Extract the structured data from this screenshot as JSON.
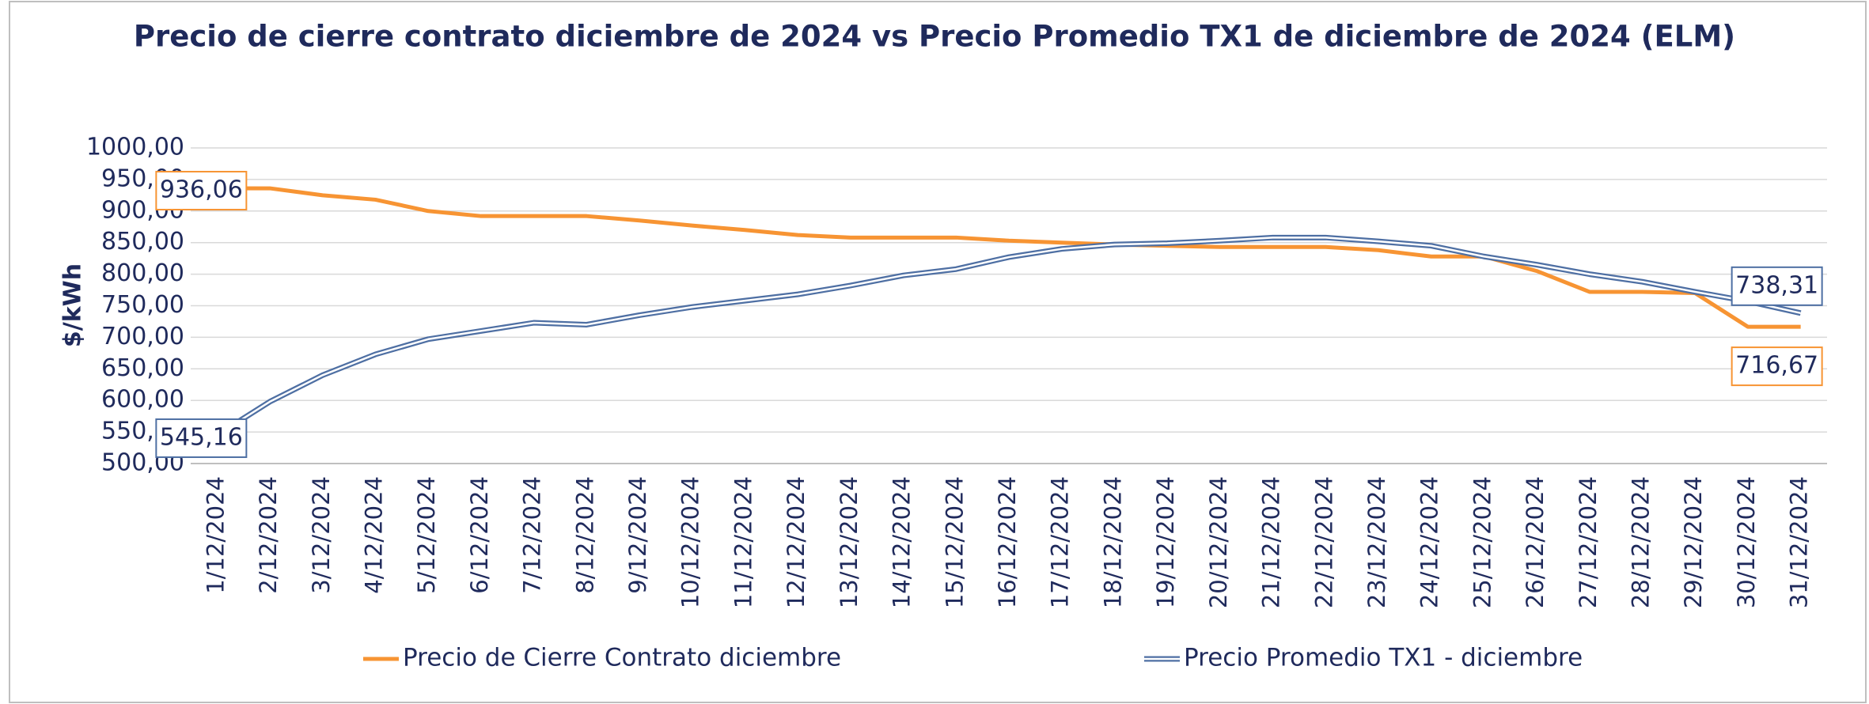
{
  "chart_data": {
    "type": "line",
    "title": "Precio de cierre contrato diciembre de 2024 vs Precio Promedio TX1 de diciembre de 2024 (ELM)",
    "y_label": "$/kWh",
    "categories": [
      "1/12/2024",
      "2/12/2024",
      "3/12/2024",
      "4/12/2024",
      "5/12/2024",
      "6/12/2024",
      "7/12/2024",
      "8/12/2024",
      "9/12/2024",
      "10/12/2024",
      "11/12/2024",
      "12/12/2024",
      "13/12/2024",
      "14/12/2024",
      "15/12/2024",
      "16/12/2024",
      "17/12/2024",
      "18/12/2024",
      "19/12/2024",
      "20/12/2024",
      "21/12/2024",
      "22/12/2024",
      "23/12/2024",
      "24/12/2024",
      "25/12/2024",
      "26/12/2024",
      "27/12/2024",
      "28/12/2024",
      "29/12/2024",
      "30/12/2024",
      "31/12/2024"
    ],
    "series": [
      {
        "name": "Precio de Cierre Contrato diciembre",
        "color": "#f79433",
        "values": [
          936.06,
          936,
          925,
          918,
          900,
          892,
          892,
          892,
          885,
          877,
          870,
          862,
          858,
          858,
          858,
          853,
          850,
          847,
          845,
          843,
          843,
          843,
          838,
          828,
          828,
          805,
          772,
          772,
          770,
          716.67,
          716.67
        ],
        "value_labels": [
          "936,06",
          null,
          null,
          null,
          null,
          null,
          null,
          null,
          null,
          null,
          null,
          null,
          null,
          null,
          null,
          null,
          null,
          null,
          null,
          null,
          null,
          null,
          null,
          null,
          null,
          null,
          null,
          null,
          null,
          null,
          "716,67"
        ]
      },
      {
        "name": "Precio Promedio TX1 - diciembre",
        "color": "#4e6fa3",
        "values": [
          545.16,
          598,
          640,
          673,
          697,
          710,
          723,
          720,
          735,
          748,
          758,
          768,
          782,
          798,
          808,
          827,
          840,
          847,
          849,
          853,
          858,
          858,
          852,
          845,
          828,
          815,
          800,
          788,
          772,
          757,
          738.31
        ],
        "value_labels": [
          "545,16",
          null,
          null,
          null,
          null,
          null,
          null,
          null,
          null,
          null,
          null,
          null,
          null,
          null,
          null,
          null,
          null,
          null,
          null,
          null,
          null,
          null,
          null,
          null,
          null,
          null,
          null,
          null,
          null,
          null,
          "738,31"
        ]
      }
    ],
    "ylim": [
      500,
      1000
    ],
    "yticks": [
      {
        "value": 500,
        "label": "500,00"
      },
      {
        "value": 550,
        "label": "550,00"
      },
      {
        "value": 600,
        "label": "600,00"
      },
      {
        "value": 650,
        "label": "650,00"
      },
      {
        "value": 700,
        "label": "700,00"
      },
      {
        "value": 750,
        "label": "750,00"
      },
      {
        "value": 800,
        "label": "800,00"
      },
      {
        "value": 850,
        "label": "850,00"
      },
      {
        "value": 900,
        "label": "900,00"
      },
      {
        "value": 950,
        "label": "950,00"
      },
      {
        "value": 1000,
        "label": "1000,00"
      }
    ],
    "grid": true,
    "legend": "bottom"
  }
}
